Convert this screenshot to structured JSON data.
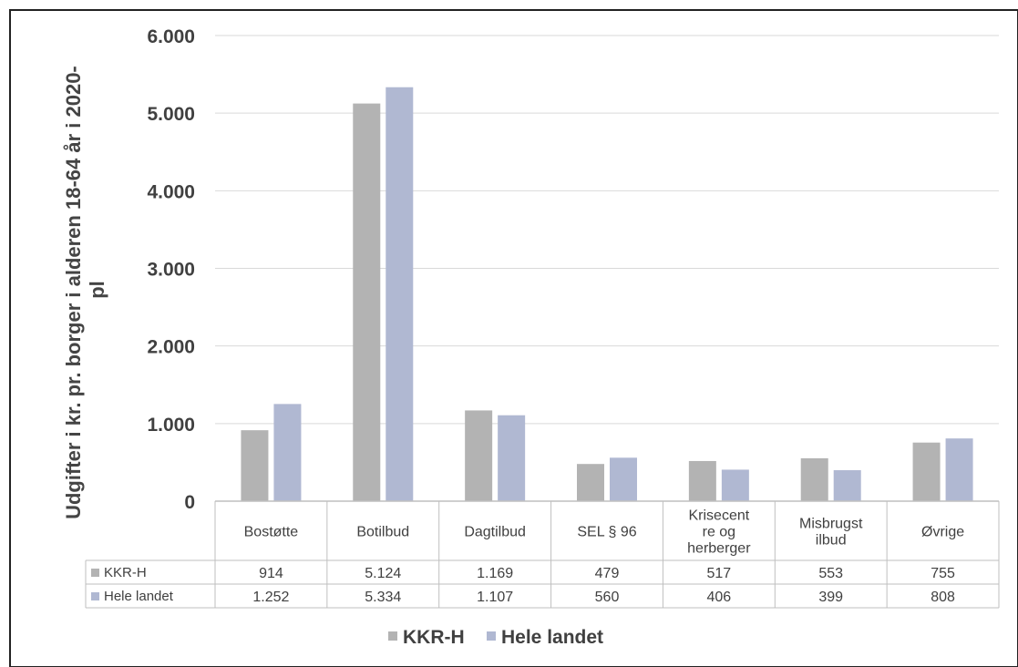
{
  "chart_data": {
    "type": "bar",
    "title": "",
    "ylabel": "Udgifter i kr. pr. borger i alderen 18-64 år i 2020-pl",
    "ylabel_line1": "Udgifter i kr. pr. borger i alderen 18-64 år i 2020-",
    "ylabel_line2": "pl",
    "xlabel": "",
    "ylim": [
      0,
      6000
    ],
    "yticks": [
      0,
      1000,
      2000,
      3000,
      4000,
      5000,
      6000
    ],
    "ytick_labels": [
      "0",
      "1.000",
      "2.000",
      "3.000",
      "4.000",
      "5.000",
      "6.000"
    ],
    "grid": true,
    "legend_position": "bottom",
    "categories": [
      "Bostøtte",
      "Botilbud",
      "Dagtilbud",
      "SEL § 96",
      "Krisecenter og herberger",
      "Misbrugstilbud",
      "Øvrige"
    ],
    "category_label_lines": [
      [
        "Bostøtte"
      ],
      [
        "Botilbud"
      ],
      [
        "Dagtilbud"
      ],
      [
        "SEL § 96"
      ],
      [
        "Krisecent",
        "re og",
        "herberger"
      ],
      [
        "Misbrugst",
        "ilbud"
      ],
      [
        "Øvrige"
      ]
    ],
    "series": [
      {
        "name": "KKR-H",
        "color": "#b3b3b3",
        "values": [
          914,
          5124,
          1169,
          479,
          517,
          553,
          755
        ],
        "value_labels": [
          "914",
          "5.124",
          "1.169",
          "479",
          "517",
          "553",
          "755"
        ]
      },
      {
        "name": "Hele landet",
        "color": "#b0b8d2",
        "values": [
          1252,
          5334,
          1107,
          560,
          406,
          399,
          808
        ],
        "value_labels": [
          "1.252",
          "5.334",
          "1.107",
          "560",
          "406",
          "399",
          "808"
        ]
      }
    ]
  }
}
